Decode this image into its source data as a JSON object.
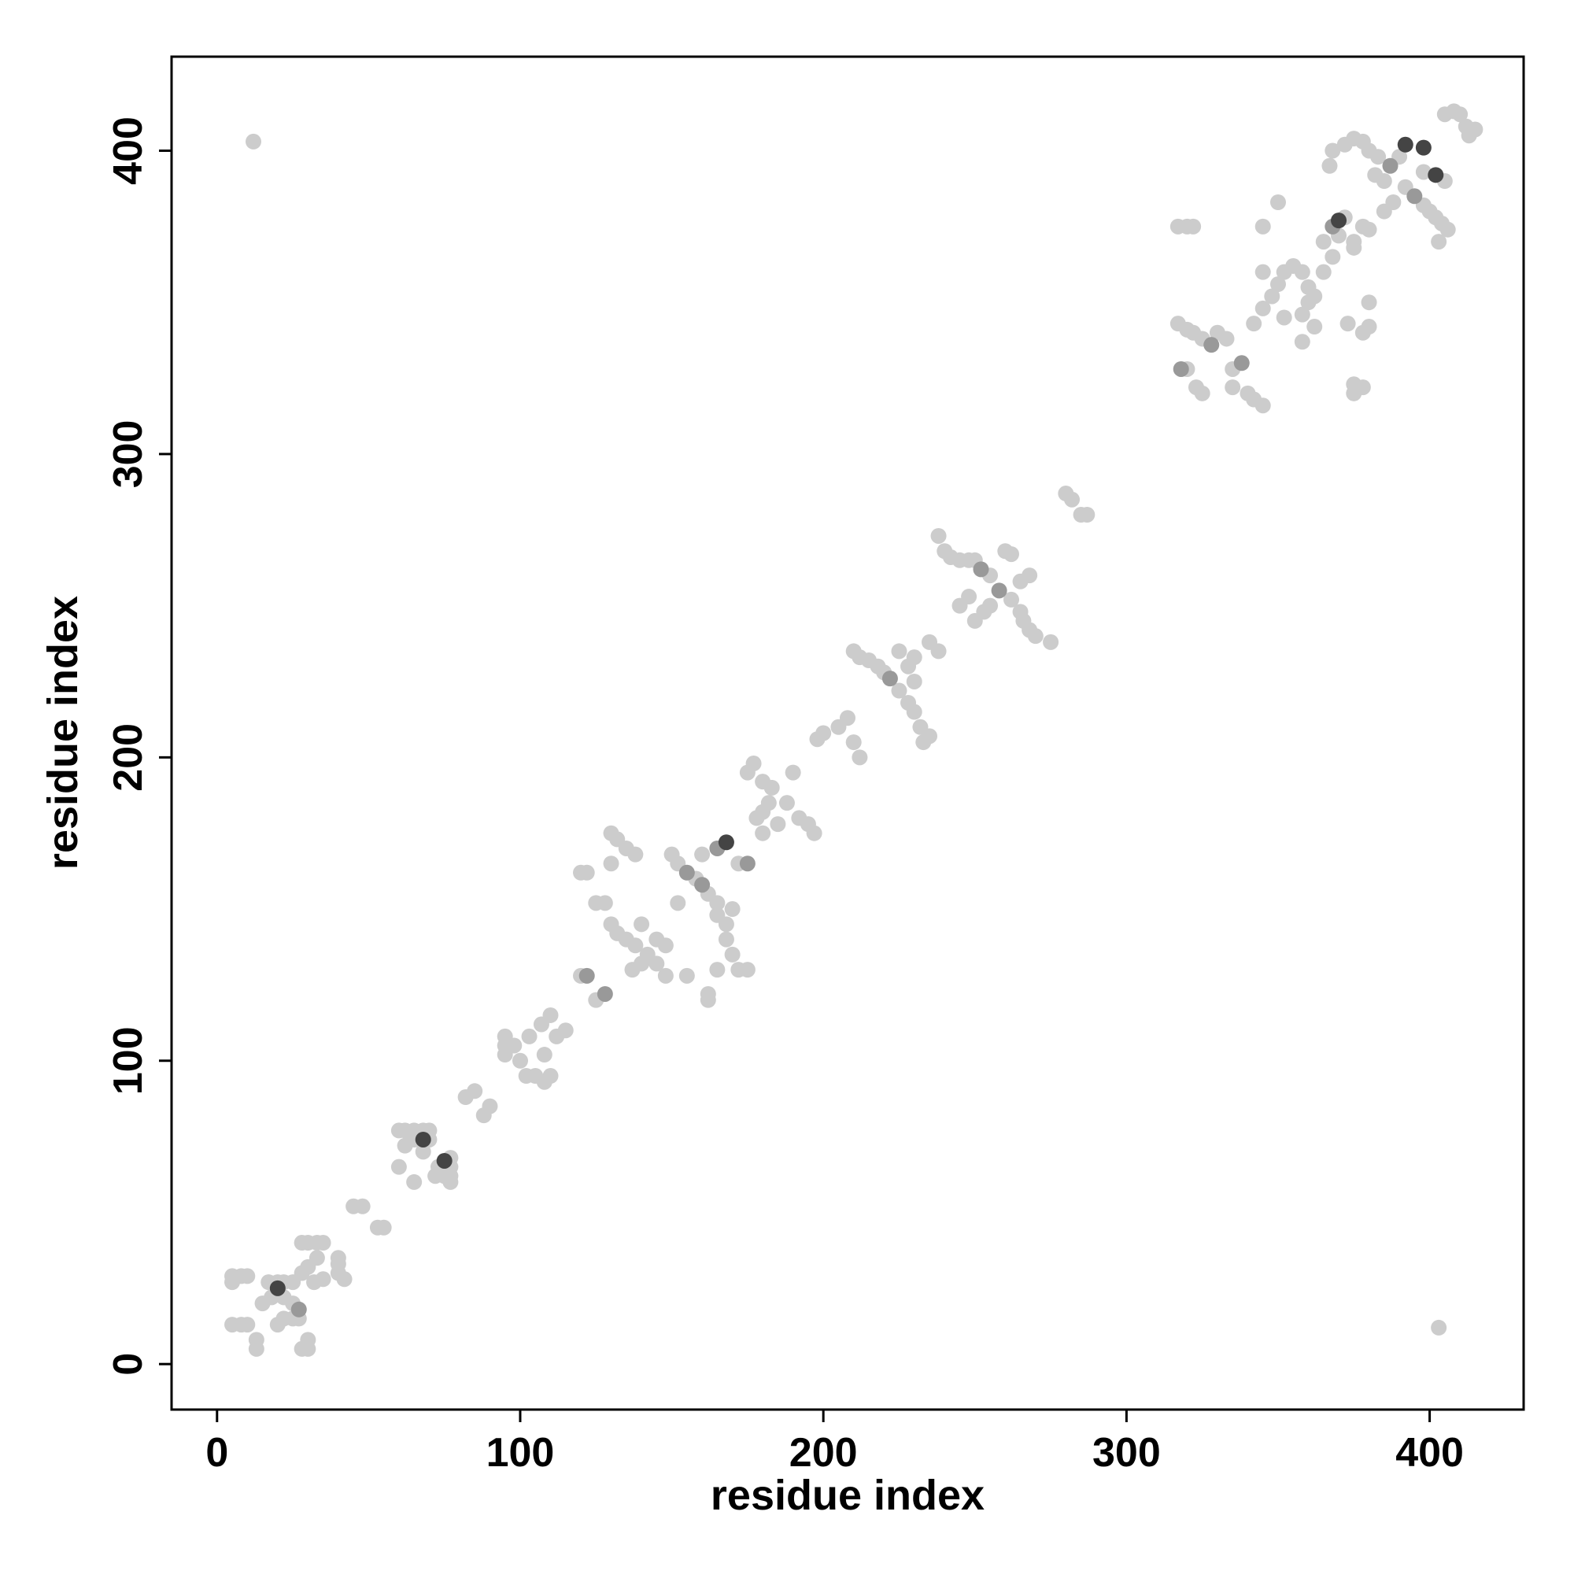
{
  "chart_data": {
    "type": "scatter",
    "x_label": "residue index",
    "y_label": "residue index",
    "xlim": [
      -15,
      431
    ],
    "ylim": [
      -15,
      431
    ],
    "xticks": [
      0,
      100,
      200,
      300,
      400
    ],
    "yticks": [
      0,
      100,
      200,
      300,
      400
    ],
    "grid": false,
    "series": [
      {
        "color": "#cccccc",
        "x": [
          12,
          403,
          5,
          8,
          10,
          5,
          5,
          8,
          10,
          13,
          13,
          15,
          18,
          22,
          25,
          27,
          28,
          30,
          30,
          25,
          22,
          20,
          17,
          20,
          22,
          25,
          28,
          30,
          33,
          35,
          33,
          30,
          28,
          40,
          40,
          42,
          40,
          35,
          32,
          45,
          48,
          53,
          55,
          60,
          62,
          65,
          68,
          70,
          62,
          65,
          70,
          77,
          77,
          77,
          77,
          73,
          75,
          72,
          65,
          60,
          68,
          82,
          85,
          88,
          90,
          95,
          95,
          95,
          98,
          100,
          102,
          105,
          108,
          110,
          103,
          108,
          107,
          110,
          112,
          115,
          120,
          120,
          122,
          125,
          125,
          128,
          130,
          130,
          132,
          135,
          138,
          130,
          132,
          135,
          138,
          140,
          142,
          145,
          140,
          137,
          145,
          148,
          152,
          150,
          152,
          158,
          162,
          165,
          165,
          168,
          170,
          168,
          170,
          172,
          175,
          165,
          162,
          162,
          155,
          148,
          160,
          172,
          178,
          180,
          182,
          185,
          175,
          177,
          180,
          183,
          188,
          192,
          195,
          197,
          190,
          180,
          198,
          200,
          205,
          208,
          210,
          212,
          210,
          212,
          215,
          218,
          220,
          225,
          228,
          230,
          232,
          235,
          233,
          228,
          230,
          225,
          230,
          235,
          238,
          240,
          242,
          245,
          248,
          250,
          255,
          262,
          265,
          266,
          268,
          270,
          265,
          268,
          260,
          262,
          245,
          248,
          250,
          253,
          238,
          275,
          255,
          280,
          282,
          285,
          287,
          317,
          320,
          322,
          325,
          330,
          333,
          335,
          340,
          342,
          345,
          335,
          320,
          323,
          325,
          317,
          320,
          322,
          375,
          375,
          378,
          342,
          345,
          348,
          350,
          352,
          355,
          358,
          360,
          362,
          360,
          358,
          362,
          352,
          345,
          345,
          350,
          365,
          372,
          370,
          375,
          375,
          378,
          380,
          372,
          375,
          378,
          380,
          382,
          385,
          390,
          392,
          398,
          400,
          402,
          404,
          406,
          403,
          385,
          388,
          383,
          398,
          405,
          405,
          408,
          410,
          412,
          415,
          413,
          380,
          378,
          367,
          368,
          373,
          380,
          358,
          365,
          368
        ],
        "y": [
          403,
          12,
          13,
          13,
          13,
          27,
          29,
          29,
          29,
          8,
          5,
          20,
          22,
          22,
          20,
          15,
          5,
          5,
          8,
          15,
          15,
          13,
          27,
          27,
          27,
          27,
          30,
          32,
          35,
          40,
          40,
          40,
          40,
          33,
          30,
          28,
          35,
          28,
          27,
          52,
          52,
          45,
          45,
          77,
          77,
          77,
          77,
          77,
          72,
          74,
          74,
          68,
          65,
          62,
          60,
          65,
          62,
          62,
          60,
          65,
          70,
          88,
          90,
          82,
          85,
          102,
          105,
          108,
          105,
          100,
          95,
          95,
          93,
          95,
          108,
          102,
          112,
          115,
          108,
          110,
          128,
          162,
          162,
          120,
          152,
          152,
          165,
          175,
          173,
          170,
          168,
          145,
          142,
          140,
          138,
          145,
          135,
          132,
          132,
          130,
          140,
          138,
          152,
          168,
          165,
          160,
          155,
          152,
          148,
          145,
          150,
          140,
          135,
          130,
          130,
          130,
          120,
          122,
          128,
          128,
          168,
          165,
          180,
          182,
          185,
          178,
          195,
          198,
          192,
          190,
          185,
          180,
          178,
          175,
          195,
          175,
          206,
          208,
          210,
          213,
          205,
          200,
          235,
          233,
          232,
          230,
          228,
          222,
          218,
          215,
          210,
          207,
          205,
          230,
          233,
          235,
          225,
          238,
          235,
          268,
          266,
          265,
          265,
          265,
          260,
          252,
          248,
          245,
          242,
          240,
          258,
          260,
          268,
          267,
          250,
          253,
          245,
          248,
          273,
          238,
          250,
          287,
          285,
          280,
          280,
          343,
          341,
          340,
          338,
          340,
          338,
          328,
          320,
          318,
          316,
          322,
          328,
          322,
          320,
          375,
          375,
          375,
          320,
          323,
          322,
          343,
          348,
          352,
          356,
          360,
          362,
          360,
          355,
          352,
          350,
          346,
          342,
          345,
          360,
          375,
          383,
          370,
          378,
          372,
          370,
          368,
          375,
          374,
          402,
          404,
          403,
          400,
          392,
          390,
          398,
          388,
          382,
          380,
          378,
          376,
          374,
          370,
          380,
          383,
          398,
          393,
          390,
          412,
          413,
          412,
          408,
          407,
          405,
          342,
          340,
          395,
          400,
          343,
          350,
          337,
          360,
          365
        ]
      },
      {
        "color": "#999999",
        "x": [
          27,
          122,
          128,
          160,
          165,
          175,
          222,
          252,
          258,
          328,
          338,
          368,
          387,
          395,
          318,
          155
        ],
        "y": [
          18,
          128,
          122,
          158,
          170,
          165,
          226,
          262,
          255,
          336,
          330,
          375,
          395,
          385,
          328,
          162
        ]
      },
      {
        "color": "#444444",
        "x": [
          20,
          68,
          75,
          168,
          370,
          392,
          402,
          398
        ],
        "y": [
          25,
          74,
          67,
          172,
          377,
          402,
          392,
          401
        ]
      }
    ]
  }
}
